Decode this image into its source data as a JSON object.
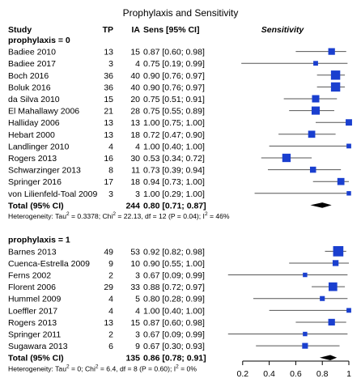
{
  "chart_data": {
    "type": "forest",
    "title": "Prophylaxis and Sensitivity",
    "columns": {
      "study": "Study",
      "tp": "TP",
      "ia": "IA",
      "sens": "Sens [95% CI]",
      "plot": "Sensitivity"
    },
    "xlim": [
      0,
      1
    ],
    "x_ticks": [
      "0.2",
      "0.4",
      "0.6",
      "0.8",
      "1"
    ],
    "x_tick_values": [
      0.2,
      0.4,
      0.6,
      0.8,
      1.0
    ],
    "colors": {
      "marker": "#1a3fcf",
      "ci_line": "#555555",
      "axis": "#000000"
    },
    "groups": [
      {
        "label": "prophylaxis = 0",
        "studies": [
          {
            "name": "Badiee 2010",
            "tp": "13",
            "ia": "15",
            "ci_text": "0.87 [0.60; 0.98]",
            "est": 0.87,
            "lo": 0.6,
            "hi": 0.98,
            "weight": 15
          },
          {
            "name": "Badiee 2017",
            "tp": "3",
            "ia": "4",
            "ci_text": "0.75 [0.19; 0.99]",
            "est": 0.75,
            "lo": 0.19,
            "hi": 0.99,
            "weight": 4
          },
          {
            "name": "Boch 2016",
            "tp": "36",
            "ia": "40",
            "ci_text": "0.90 [0.76; 0.97]",
            "est": 0.9,
            "lo": 0.76,
            "hi": 0.97,
            "weight": 40
          },
          {
            "name": "Boluk 2016",
            "tp": "36",
            "ia": "40",
            "ci_text": "0.90 [0.76; 0.97]",
            "est": 0.9,
            "lo": 0.76,
            "hi": 0.97,
            "weight": 40
          },
          {
            "name": "da Silva 2010",
            "tp": "15",
            "ia": "20",
            "ci_text": "0.75 [0.51; 0.91]",
            "est": 0.75,
            "lo": 0.51,
            "hi": 0.91,
            "weight": 20
          },
          {
            "name": "El Mahallawy 2006",
            "tp": "21",
            "ia": "28",
            "ci_text": "0.75 [0.55; 0.89]",
            "est": 0.75,
            "lo": 0.55,
            "hi": 0.89,
            "weight": 28
          },
          {
            "name": "Halliday 2006",
            "tp": "13",
            "ia": "13",
            "ci_text": "1.00 [0.75; 1.00]",
            "est": 1.0,
            "lo": 0.75,
            "hi": 1.0,
            "weight": 13
          },
          {
            "name": "Hebart 2000",
            "tp": "13",
            "ia": "18",
            "ci_text": "0.72 [0.47; 0.90]",
            "est": 0.72,
            "lo": 0.47,
            "hi": 0.9,
            "weight": 18
          },
          {
            "name": "Landlinger 2010",
            "tp": "4",
            "ia": "4",
            "ci_text": "1.00 [0.40; 1.00]",
            "est": 1.0,
            "lo": 0.4,
            "hi": 1.0,
            "weight": 4
          },
          {
            "name": "Rogers 2013",
            "tp": "16",
            "ia": "30",
            "ci_text": "0.53 [0.34; 0.72]",
            "est": 0.53,
            "lo": 0.34,
            "hi": 0.72,
            "weight": 30
          },
          {
            "name": "Schwarzinger 2013",
            "tp": "8",
            "ia": "11",
            "ci_text": "0.73 [0.39; 0.94]",
            "est": 0.73,
            "lo": 0.39,
            "hi": 0.94,
            "weight": 11
          },
          {
            "name": "Springer 2016",
            "tp": "17",
            "ia": "18",
            "ci_text": "0.94 [0.73; 1.00]",
            "est": 0.94,
            "lo": 0.73,
            "hi": 1.0,
            "weight": 18
          },
          {
            "name": "von Lilienfeld-Toal 2009",
            "tp": "3",
            "ia": "3",
            "ci_text": "1.00 [0.29; 1.00]",
            "est": 1.0,
            "lo": 0.29,
            "hi": 1.0,
            "weight": 3
          }
        ],
        "total": {
          "label": "Total (95% CI)",
          "ia": "244",
          "ci_text": "0.80 [0.71; 0.87]",
          "est": 0.8,
          "lo": 0.71,
          "hi": 0.87
        },
        "heterogeneity": {
          "p1": "Heterogeneity: Tau",
          "s1": "2",
          "p2": " = 0.3378; Chi",
          "s2": "2",
          "p3": " = 22.13, df = 12 (P = 0.04); I",
          "s3": "2",
          "p4": " = 46%"
        }
      },
      {
        "label": "prophylaxis = 1",
        "studies": [
          {
            "name": "Barnes 2013",
            "tp": "49",
            "ia": "53",
            "ci_text": "0.92 [0.82; 0.98]",
            "est": 0.92,
            "lo": 0.82,
            "hi": 0.98,
            "weight": 53
          },
          {
            "name": "Cuenca-Estrella 2009",
            "tp": "9",
            "ia": "10",
            "ci_text": "0.90 [0.55; 1.00]",
            "est": 0.9,
            "lo": 0.55,
            "hi": 1.0,
            "weight": 10
          },
          {
            "name": "Ferns 2002",
            "tp": "2",
            "ia": "3",
            "ci_text": "0.67 [0.09; 0.99]",
            "est": 0.67,
            "lo": 0.09,
            "hi": 0.99,
            "weight": 3
          },
          {
            "name": "Florent 2006",
            "tp": "29",
            "ia": "33",
            "ci_text": "0.88 [0.72; 0.97]",
            "est": 0.88,
            "lo": 0.72,
            "hi": 0.97,
            "weight": 33
          },
          {
            "name": "Hummel 2009",
            "tp": "4",
            "ia": "5",
            "ci_text": "0.80 [0.28; 0.99]",
            "est": 0.8,
            "lo": 0.28,
            "hi": 0.99,
            "weight": 5
          },
          {
            "name": "Loeffler 2017",
            "tp": "4",
            "ia": "4",
            "ci_text": "1.00 [0.40; 1.00]",
            "est": 1.0,
            "lo": 0.4,
            "hi": 1.0,
            "weight": 4
          },
          {
            "name": "Rogers 2013",
            "tp": "13",
            "ia": "15",
            "ci_text": "0.87 [0.60; 0.98]",
            "est": 0.87,
            "lo": 0.6,
            "hi": 0.98,
            "weight": 15
          },
          {
            "name": "Springer 2011",
            "tp": "2",
            "ia": "3",
            "ci_text": "0.67 [0.09; 0.99]",
            "est": 0.67,
            "lo": 0.09,
            "hi": 0.99,
            "weight": 3
          },
          {
            "name": "Sugawara 2013",
            "tp": "6",
            "ia": "9",
            "ci_text": "0.67 [0.30; 0.93]",
            "est": 0.67,
            "lo": 0.3,
            "hi": 0.93,
            "weight": 9
          }
        ],
        "total": {
          "label": "Total (95% CI)",
          "ia": "135",
          "ci_text": "0.86 [0.78; 0.91]",
          "est": 0.86,
          "lo": 0.78,
          "hi": 0.91
        },
        "heterogeneity": {
          "p1": "Heterogeneity: Tau",
          "s1": "2",
          "p2": " = 0; Chi",
          "s2": "2",
          "p3": " = 6.4, df = 8 (P = 0.60); I",
          "s3": "2",
          "p4": " = 0%"
        }
      }
    ]
  }
}
